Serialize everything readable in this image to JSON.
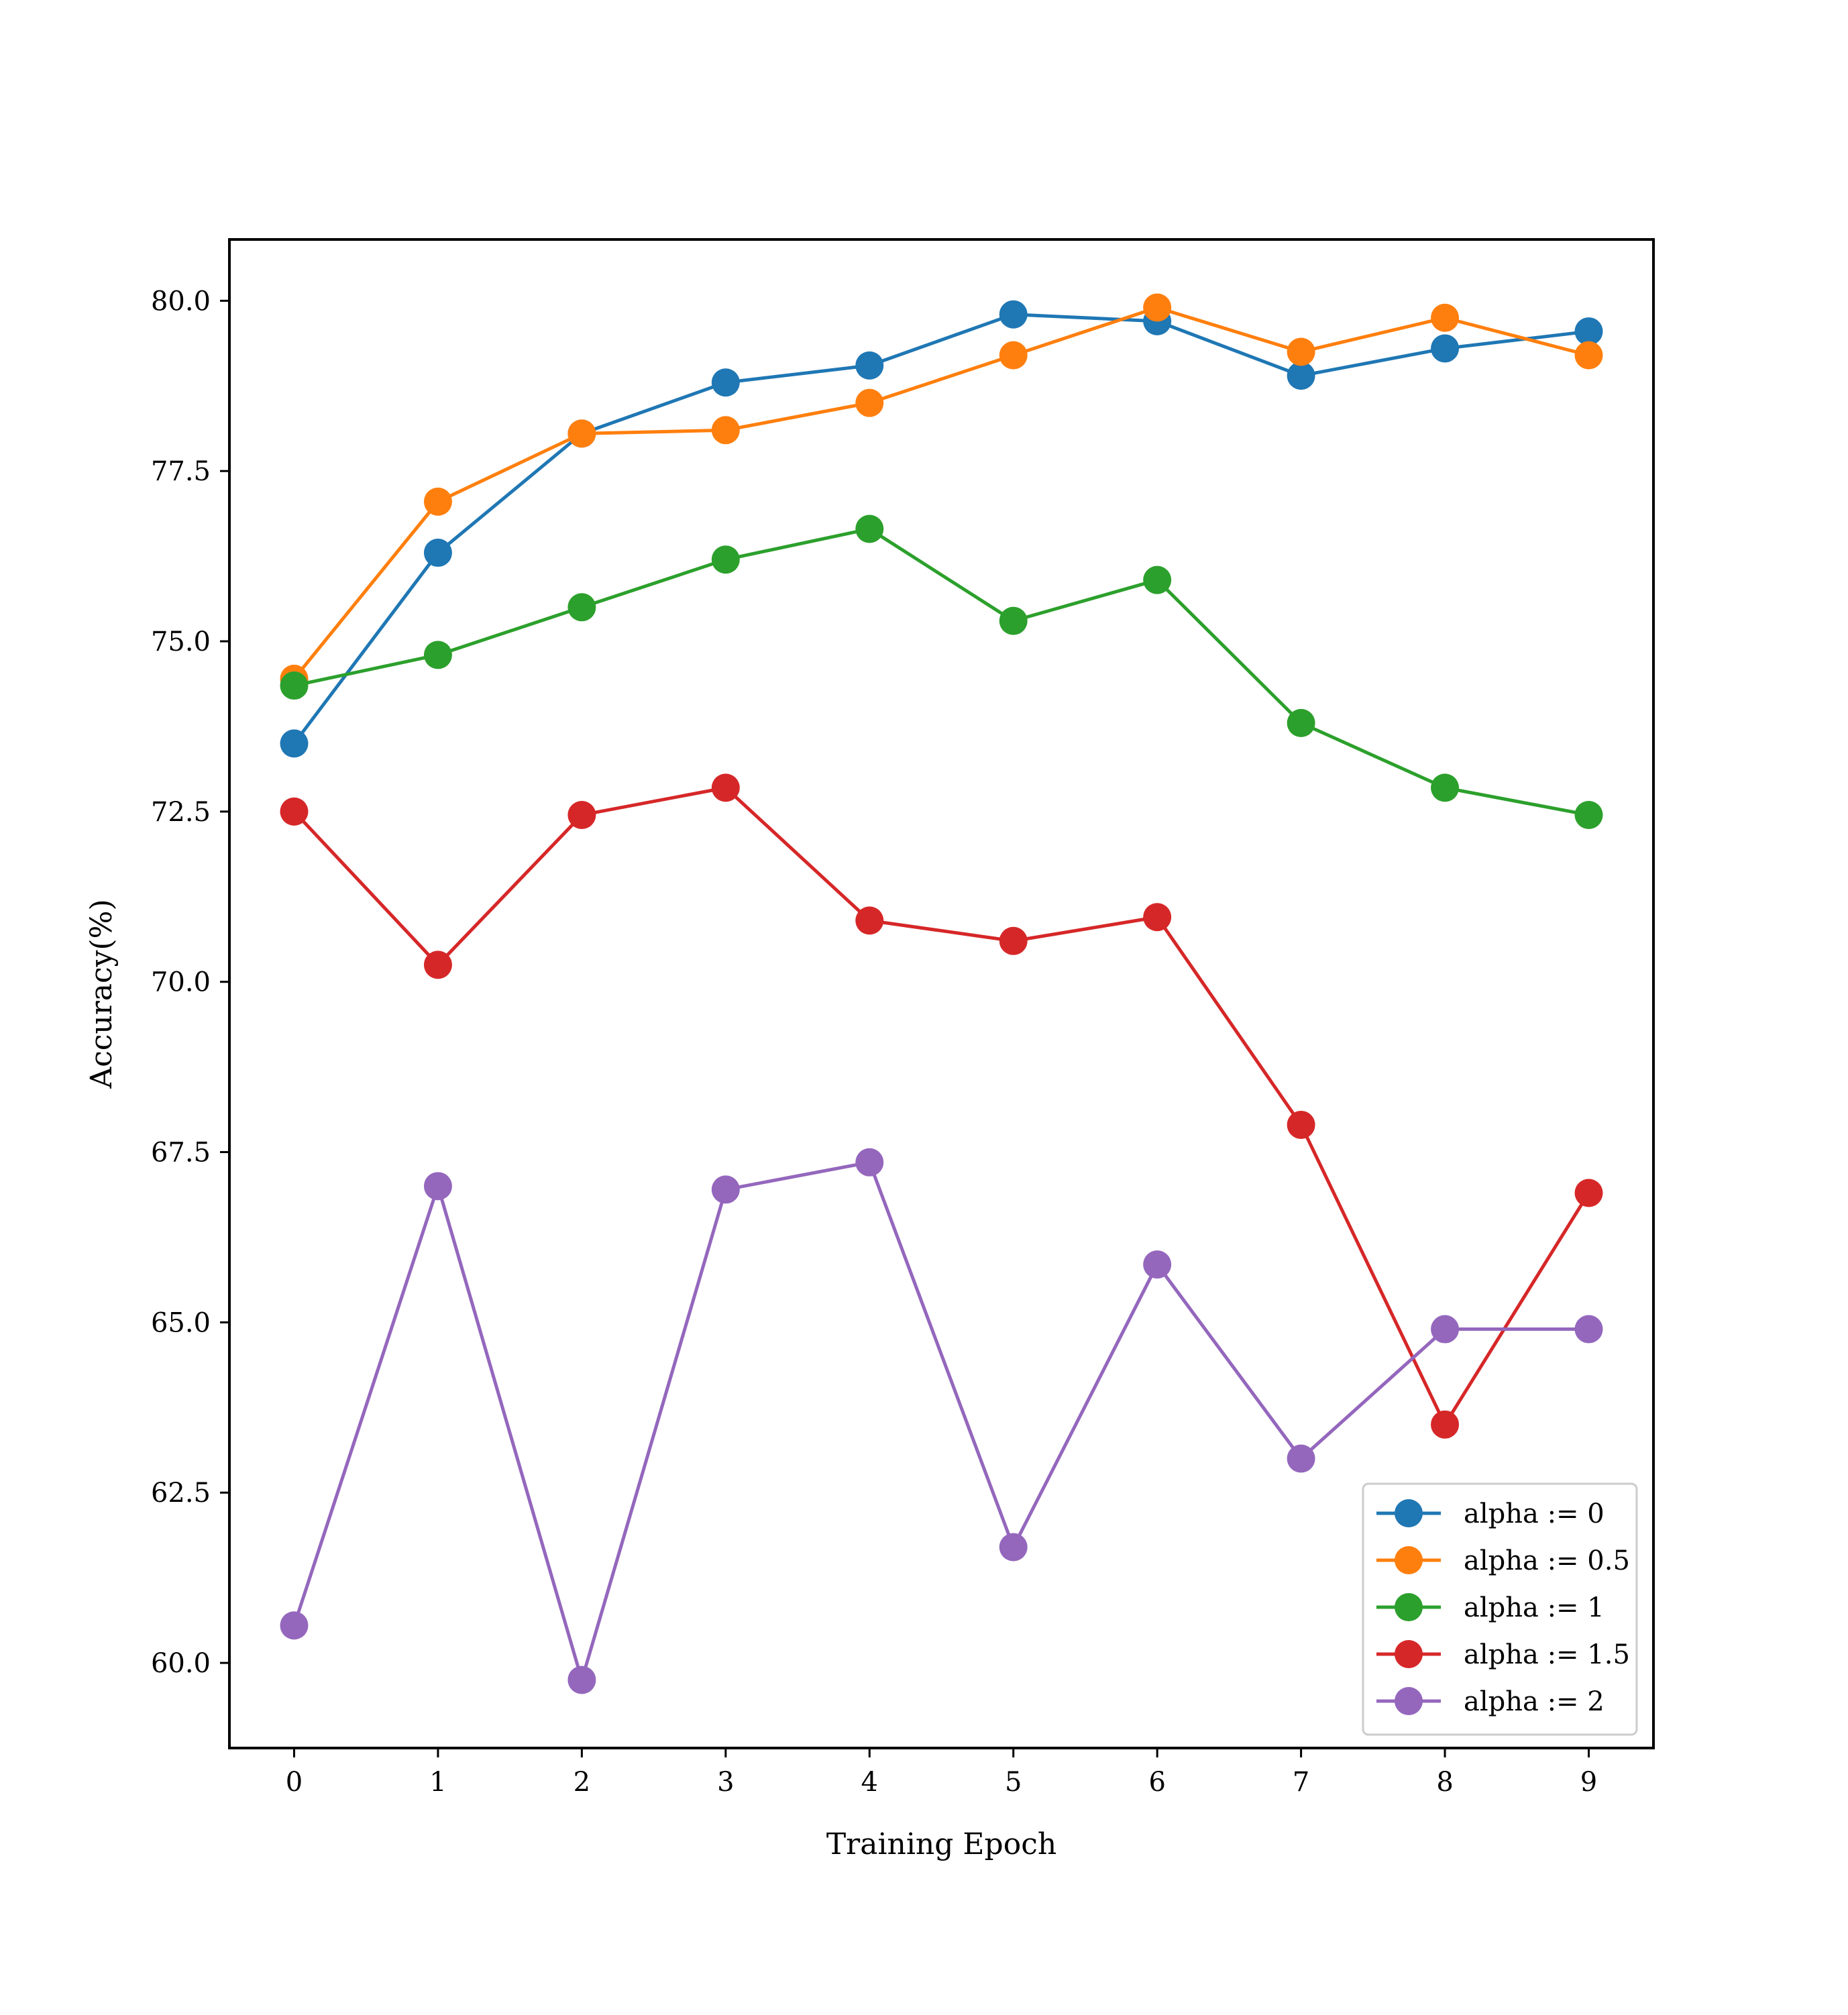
{
  "chart_data": {
    "type": "line",
    "title": "",
    "xlabel": "Training Epoch",
    "ylabel": "Accuracy(%)",
    "x": [
      0,
      1,
      2,
      3,
      4,
      5,
      6,
      7,
      8,
      9
    ],
    "x_tick_labels": [
      "0",
      "1",
      "2",
      "3",
      "4",
      "5",
      "6",
      "7",
      "8",
      "9"
    ],
    "y_tick_values": [
      60.0,
      62.5,
      65.0,
      67.5,
      70.0,
      72.5,
      75.0,
      77.5,
      80.0
    ],
    "y_tick_labels": [
      "60.0",
      "62.5",
      "65.0",
      "67.5",
      "70.0",
      "72.5",
      "75.0",
      "77.5",
      "80.0"
    ],
    "xlim": [
      -0.45,
      9.45
    ],
    "ylim": [
      58.75,
      80.9
    ],
    "grid": false,
    "legend_position": "lower-right",
    "series": [
      {
        "name": "alpha := 0",
        "color": "#1f77b4",
        "values": [
          73.5,
          76.3,
          78.05,
          78.8,
          79.05,
          79.8,
          79.7,
          78.9,
          79.3,
          79.55
        ]
      },
      {
        "name": "alpha := 0.5",
        "color": "#ff7f0e",
        "values": [
          74.45,
          77.05,
          78.05,
          78.1,
          78.5,
          79.2,
          79.9,
          79.25,
          79.75,
          79.2
        ]
      },
      {
        "name": "alpha := 1",
        "color": "#2ca02c",
        "values": [
          74.35,
          74.8,
          75.5,
          76.2,
          76.65,
          75.3,
          75.9,
          73.8,
          72.85,
          72.45
        ]
      },
      {
        "name": "alpha := 1.5",
        "color": "#d62728",
        "values": [
          72.5,
          70.25,
          72.45,
          72.85,
          70.9,
          70.6,
          70.95,
          67.9,
          63.5,
          66.9
        ]
      },
      {
        "name": "alpha := 2",
        "color": "#9467bd",
        "values": [
          60.55,
          67.0,
          59.75,
          66.95,
          67.35,
          61.7,
          65.85,
          63.0,
          64.9,
          64.9
        ]
      }
    ]
  }
}
